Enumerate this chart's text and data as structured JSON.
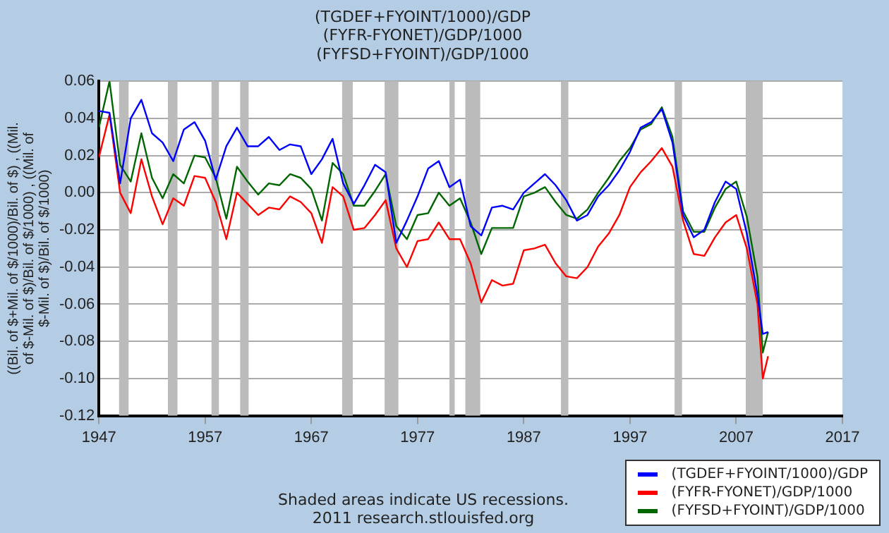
{
  "chart_data": {
    "type": "line",
    "title": "(TGDEF+FYOINT/1000)/GDP\n(FYFR-FYONET)/GDP/1000\n(FYFSD+FYOINT)/GDP/1000",
    "ylabel": "((Bil. of $+Mil. of $/1000)/Bil. of $) , ((Mil. of $-Mil. of $)/Bil. of $/1000) , ((Mil. of $-Mil. of $)/Bil. of $/1000)",
    "annotations": [
      "Shaded areas indicate US recessions.",
      "2011 research.stlouisfed.org"
    ],
    "x": [
      1947,
      1948,
      1949,
      1950,
      1951,
      1952,
      1953,
      1954,
      1955,
      1956,
      1957,
      1958,
      1959,
      1960,
      1961,
      1962,
      1963,
      1964,
      1965,
      1966,
      1967,
      1968,
      1969,
      1970,
      1971,
      1972,
      1973,
      1974,
      1975,
      1976,
      1977,
      1978,
      1979,
      1980,
      1981,
      1982,
      1983,
      1984,
      1985,
      1986,
      1987,
      1988,
      1989,
      1990,
      1991,
      1992,
      1993,
      1994,
      1995,
      1996,
      1997,
      1998,
      1999,
      2000,
      2001,
      2002,
      2003,
      2004,
      2005,
      2006,
      2007,
      2008,
      2009,
      2009.5,
      2010
    ],
    "series": [
      {
        "name": "(TGDEF+FYOINT/1000)/GDP",
        "color": "#0000ff",
        "values": [
          0.044,
          0.043,
          0.005,
          0.04,
          0.05,
          0.032,
          0.027,
          0.017,
          0.034,
          0.038,
          0.028,
          0.007,
          0.025,
          0.035,
          0.025,
          0.025,
          0.03,
          0.023,
          0.026,
          0.025,
          0.01,
          0.018,
          0.029,
          0.005,
          -0.006,
          0.004,
          0.015,
          0.011,
          -0.027,
          -0.015,
          -0.002,
          0.013,
          0.017,
          0.003,
          0.007,
          -0.018,
          -0.023,
          -0.008,
          -0.007,
          -0.009,
          0.0,
          0.005,
          0.01,
          0.004,
          -0.004,
          -0.015,
          -0.012,
          -0.002,
          0.004,
          0.012,
          0.022,
          0.035,
          0.038,
          0.045,
          0.027,
          -0.012,
          -0.024,
          -0.02,
          -0.005,
          0.006,
          0.002,
          -0.022,
          -0.055,
          -0.076,
          -0.075
        ]
      },
      {
        "name": "(FYFR-FYONET)/GDP/1000",
        "color": "#ff0000",
        "values": [
          0.019,
          0.042,
          0.0,
          -0.011,
          0.018,
          -0.002,
          -0.017,
          -0.003,
          -0.007,
          0.009,
          0.008,
          -0.005,
          -0.025,
          0.0,
          -0.006,
          -0.012,
          -0.008,
          -0.009,
          -0.002,
          -0.005,
          -0.011,
          -0.027,
          0.003,
          -0.002,
          -0.02,
          -0.019,
          -0.012,
          -0.004,
          -0.03,
          -0.04,
          -0.026,
          -0.025,
          -0.016,
          -0.025,
          -0.025,
          -0.038,
          -0.059,
          -0.047,
          -0.05,
          -0.049,
          -0.031,
          -0.03,
          -0.028,
          -0.038,
          -0.045,
          -0.046,
          -0.04,
          -0.029,
          -0.022,
          -0.012,
          0.003,
          0.011,
          0.017,
          0.024,
          0.014,
          -0.015,
          -0.033,
          -0.034,
          -0.024,
          -0.016,
          -0.012,
          -0.03,
          -0.06,
          -0.1,
          -0.088
        ]
      },
      {
        "name": "(FYFSD+FYOINT)/GDP/1000",
        "color": "#006600",
        "values": [
          0.035,
          0.06,
          0.015,
          0.006,
          0.032,
          0.008,
          -0.003,
          0.01,
          0.005,
          0.02,
          0.019,
          0.008,
          -0.014,
          0.014,
          0.006,
          -0.001,
          0.005,
          0.004,
          0.01,
          0.008,
          0.002,
          -0.015,
          0.016,
          0.01,
          -0.007,
          -0.007,
          0.001,
          0.01,
          -0.018,
          -0.025,
          -0.012,
          -0.011,
          0.0,
          -0.007,
          -0.003,
          -0.016,
          -0.033,
          -0.019,
          -0.019,
          -0.019,
          -0.002,
          0.0,
          0.003,
          -0.005,
          -0.012,
          -0.014,
          -0.009,
          0.0,
          0.008,
          0.017,
          0.024,
          0.034,
          0.037,
          0.046,
          0.03,
          -0.01,
          -0.021,
          -0.021,
          -0.008,
          0.002,
          0.006,
          -0.013,
          -0.045,
          -0.086,
          -0.075
        ]
      }
    ],
    "xlim": [
      1947,
      2017
    ],
    "xticks": [
      1947,
      1957,
      1967,
      1977,
      1987,
      1997,
      2007,
      2017
    ],
    "ylim": [
      -0.12,
      0.06
    ],
    "yticks": [
      -0.12,
      {
        "value": -0.1,
        "label": "-0.10"
      },
      -0.08,
      -0.06,
      -0.04,
      -0.02,
      {
        "value": 0,
        "label": "0.00"
      },
      0.02,
      0.04,
      0.06
    ],
    "bands": [
      {
        "axis": "x",
        "from": 1948.9,
        "to": 1949.8,
        "color": "#bbbbbb"
      },
      {
        "axis": "x",
        "from": 1953.5,
        "to": 1954.4,
        "color": "#bbbbbb"
      },
      {
        "axis": "x",
        "from": 1957.6,
        "to": 1958.3,
        "color": "#bbbbbb"
      },
      {
        "axis": "x",
        "from": 1960.3,
        "to": 1961.1,
        "color": "#bbbbbb"
      },
      {
        "axis": "x",
        "from": 1969.9,
        "to": 1970.9,
        "color": "#bbbbbb"
      },
      {
        "axis": "x",
        "from": 1973.9,
        "to": 1975.2,
        "color": "#bbbbbb"
      },
      {
        "axis": "x",
        "from": 1980.0,
        "to": 1980.5,
        "color": "#bbbbbb"
      },
      {
        "axis": "x",
        "from": 1981.5,
        "to": 1982.9,
        "color": "#bbbbbb"
      },
      {
        "axis": "x",
        "from": 1990.5,
        "to": 1991.2,
        "color": "#bbbbbb"
      },
      {
        "axis": "x",
        "from": 2001.2,
        "to": 2001.9,
        "color": "#bbbbbb"
      },
      {
        "axis": "x",
        "from": 2007.9,
        "to": 2009.5,
        "color": "#bbbbbb"
      }
    ],
    "grid": "y",
    "legend": "bottom right",
    "marker": "none",
    "line_style": "solid"
  }
}
